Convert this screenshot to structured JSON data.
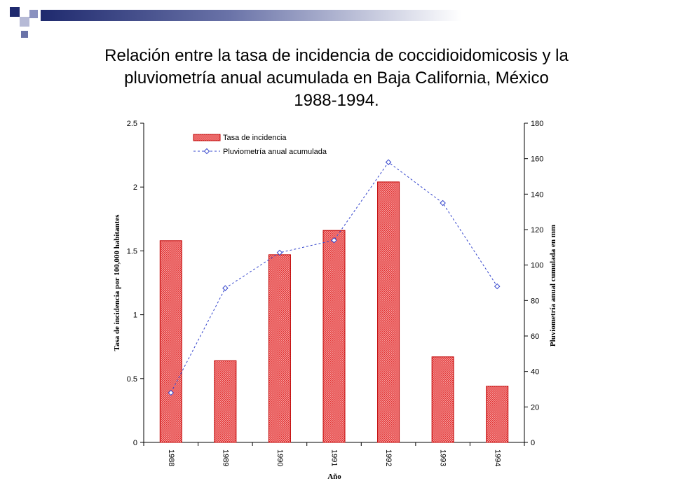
{
  "slide": {
    "title_lines": [
      "Relación entre la tasa de incidencia de coccidioidomicosis y la",
      "pluviometría anual acumulada en Baja California, México",
      "1988-1994."
    ]
  },
  "colors": {
    "deco_dark": "#1f2a6e",
    "deco_mid": "#6a73a8",
    "deco_light": "#b6bad6",
    "bar_fill": "#ee6666",
    "bar_stroke": "#c00000",
    "line": "#3344cc"
  },
  "chart_data": {
    "type": "bar",
    "categories": [
      "1988",
      "1989",
      "1990",
      "1991",
      "1992",
      "1993",
      "1994"
    ],
    "series": [
      {
        "name": "Tasa de incidencia",
        "type": "bar",
        "axis": "left",
        "values": [
          1.58,
          0.64,
          1.47,
          1.66,
          2.04,
          0.67,
          0.44
        ]
      },
      {
        "name": "Pluviometría anual acumulada",
        "type": "line",
        "axis": "right",
        "values": [
          28,
          87,
          107,
          114,
          158,
          135,
          88
        ]
      }
    ],
    "xlabel": "Año",
    "ylabel": "Tasa de incidencia por 100,000 habitantes",
    "y2label": "Pluviometría anual cumulada en mm",
    "ylim": [
      0,
      2.5
    ],
    "yticks": [
      "0",
      "0.5",
      "1",
      "1.5",
      "2",
      "2.5"
    ],
    "y2lim": [
      0,
      180
    ],
    "y2ticks": [
      "0",
      "20",
      "40",
      "60",
      "80",
      "100",
      "120",
      "140",
      "160",
      "180"
    ],
    "grid": false,
    "legend": "top-left"
  }
}
